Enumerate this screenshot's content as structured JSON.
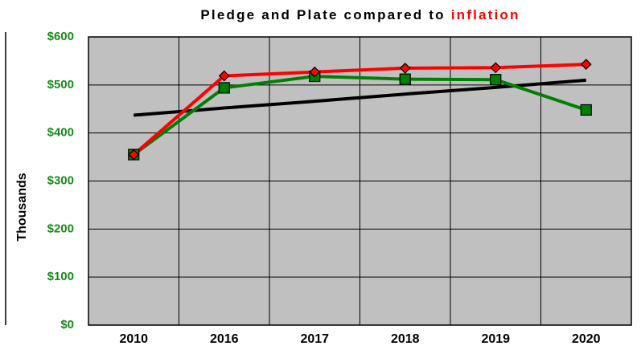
{
  "chart_data": {
    "type": "line",
    "title": "Pledge and Plate compared to",
    "title_highlight": "inflation",
    "y_label": "Thousands",
    "categories": [
      "2010",
      "2016",
      "2017",
      "2018",
      "2019",
      "2020"
    ],
    "series": [
      {
        "color": "#ff0000",
        "marker": "diamond",
        "values": [
          355,
          519,
          527,
          535,
          536,
          543
        ]
      },
      {
        "color": "#008000",
        "marker": "square",
        "values": [
          355,
          494,
          518,
          512,
          511,
          448
        ]
      },
      {
        "color": "#000000",
        "marker": "none",
        "values": [
          437,
          452,
          466,
          481,
          495,
          510
        ]
      }
    ],
    "ylim": [
      0,
      600
    ],
    "yticks": [
      {
        "value": 0,
        "label": "$0"
      },
      {
        "value": 100,
        "label": "$100"
      },
      {
        "value": 200,
        "label": "$200"
      },
      {
        "value": 300,
        "label": "$300"
      },
      {
        "value": 400,
        "label": "$400"
      },
      {
        "value": 500,
        "label": "$500"
      },
      {
        "value": 600,
        "label": "$600"
      }
    ],
    "grid": true
  }
}
